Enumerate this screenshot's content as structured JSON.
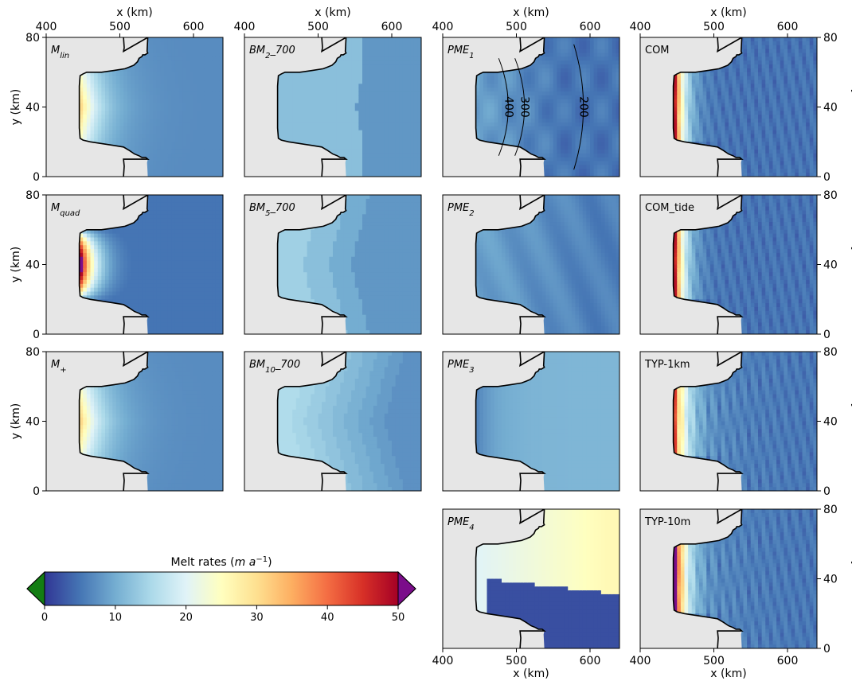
{
  "figure": {
    "colorbar": {
      "label_main": "Melt rates (",
      "label_unit": "m a",
      "label_exp": "−1",
      "label_close": ")",
      "ticks": [
        "0",
        "10",
        "20",
        "30",
        "40",
        "50"
      ],
      "tick_values": [
        0,
        10,
        20,
        30,
        40,
        50
      ],
      "range": [
        0,
        50
      ],
      "colormap": "RdYlBu_r",
      "under_color": "#137d13",
      "over_color": "#7b0d8a"
    },
    "x_axis_label": "x (km)",
    "y_axis_label": "y (km)",
    "x_ticks": [
      "400",
      "500",
      "600"
    ],
    "y_ticks": [
      "0",
      "40",
      "80"
    ]
  },
  "chart_data": {
    "type": "heatmap",
    "xlim": [
      400,
      640
    ],
    "ylim": [
      0,
      80
    ],
    "x_tick_values": [
      400,
      500,
      600
    ],
    "y_tick_values": [
      0,
      40,
      80
    ],
    "colors": {
      "grounded": "#e6e6e6",
      "ocean": "#303a97",
      "coastline": "#000000"
    },
    "panels": [
      {
        "id": "M_lin",
        "row": 0,
        "col": 0,
        "label_base": "M",
        "label_sub": "lin",
        "label_suffix": "",
        "italic": true,
        "scheme": "lin"
      },
      {
        "id": "M_quad",
        "row": 1,
        "col": 0,
        "label_base": "M",
        "label_sub": "quad",
        "label_suffix": "",
        "italic": true,
        "scheme": "quad"
      },
      {
        "id": "M_plus",
        "row": 2,
        "col": 0,
        "label_base": "M",
        "label_sub": "+",
        "label_suffix": "",
        "italic": true,
        "scheme": "plus"
      },
      {
        "id": "BM2_700",
        "row": 0,
        "col": 1,
        "label_base": "BM",
        "label_sub": "2",
        "label_suffix": "_700",
        "italic": true,
        "scheme": "bm2"
      },
      {
        "id": "BM5_700",
        "row": 1,
        "col": 1,
        "label_base": "BM",
        "label_sub": "5",
        "label_suffix": "_700",
        "italic": true,
        "scheme": "bm5"
      },
      {
        "id": "BM10_700",
        "row": 2,
        "col": 1,
        "label_base": "BM",
        "label_sub": "10",
        "label_suffix": "_700",
        "italic": true,
        "scheme": "bm10"
      },
      {
        "id": "PME1",
        "row": 0,
        "col": 2,
        "label_base": "PME",
        "label_sub": "1",
        "label_suffix": "",
        "italic": true,
        "scheme": "pme1"
      },
      {
        "id": "PME2",
        "row": 1,
        "col": 2,
        "label_base": "PME",
        "label_sub": "2",
        "label_suffix": "",
        "italic": true,
        "scheme": "pme2"
      },
      {
        "id": "PME3",
        "row": 2,
        "col": 2,
        "label_base": "PME",
        "label_sub": "3",
        "label_suffix": "",
        "italic": true,
        "scheme": "pme3"
      },
      {
        "id": "PME4",
        "row": 3,
        "col": 2,
        "label_base": "PME",
        "label_sub": "4",
        "label_suffix": "",
        "italic": true,
        "scheme": "pme4"
      },
      {
        "id": "COM",
        "row": 0,
        "col": 3,
        "label_base": "COM",
        "label_sub": "",
        "label_suffix": "",
        "italic": false,
        "scheme": "nemo"
      },
      {
        "id": "COM_tide",
        "row": 1,
        "col": 3,
        "label_base": "COM_tide",
        "label_sub": "",
        "label_suffix": "",
        "italic": false,
        "scheme": "nemo2"
      },
      {
        "id": "TYP-1km",
        "row": 2,
        "col": 3,
        "label_base": "TYP-1km",
        "label_sub": "",
        "label_suffix": "",
        "italic": false,
        "scheme": "typ1"
      },
      {
        "id": "TYP-10m",
        "row": 3,
        "col": 3,
        "label_base": "TYP-10m",
        "label_sub": "",
        "label_suffix": "",
        "italic": false,
        "scheme": "typ10"
      }
    ],
    "contours": {
      "panel": "PME1",
      "levels": [
        {
          "value": 400,
          "label": "400"
        },
        {
          "value": 300,
          "label": "300"
        },
        {
          "value": 200,
          "label": "200"
        }
      ]
    }
  }
}
